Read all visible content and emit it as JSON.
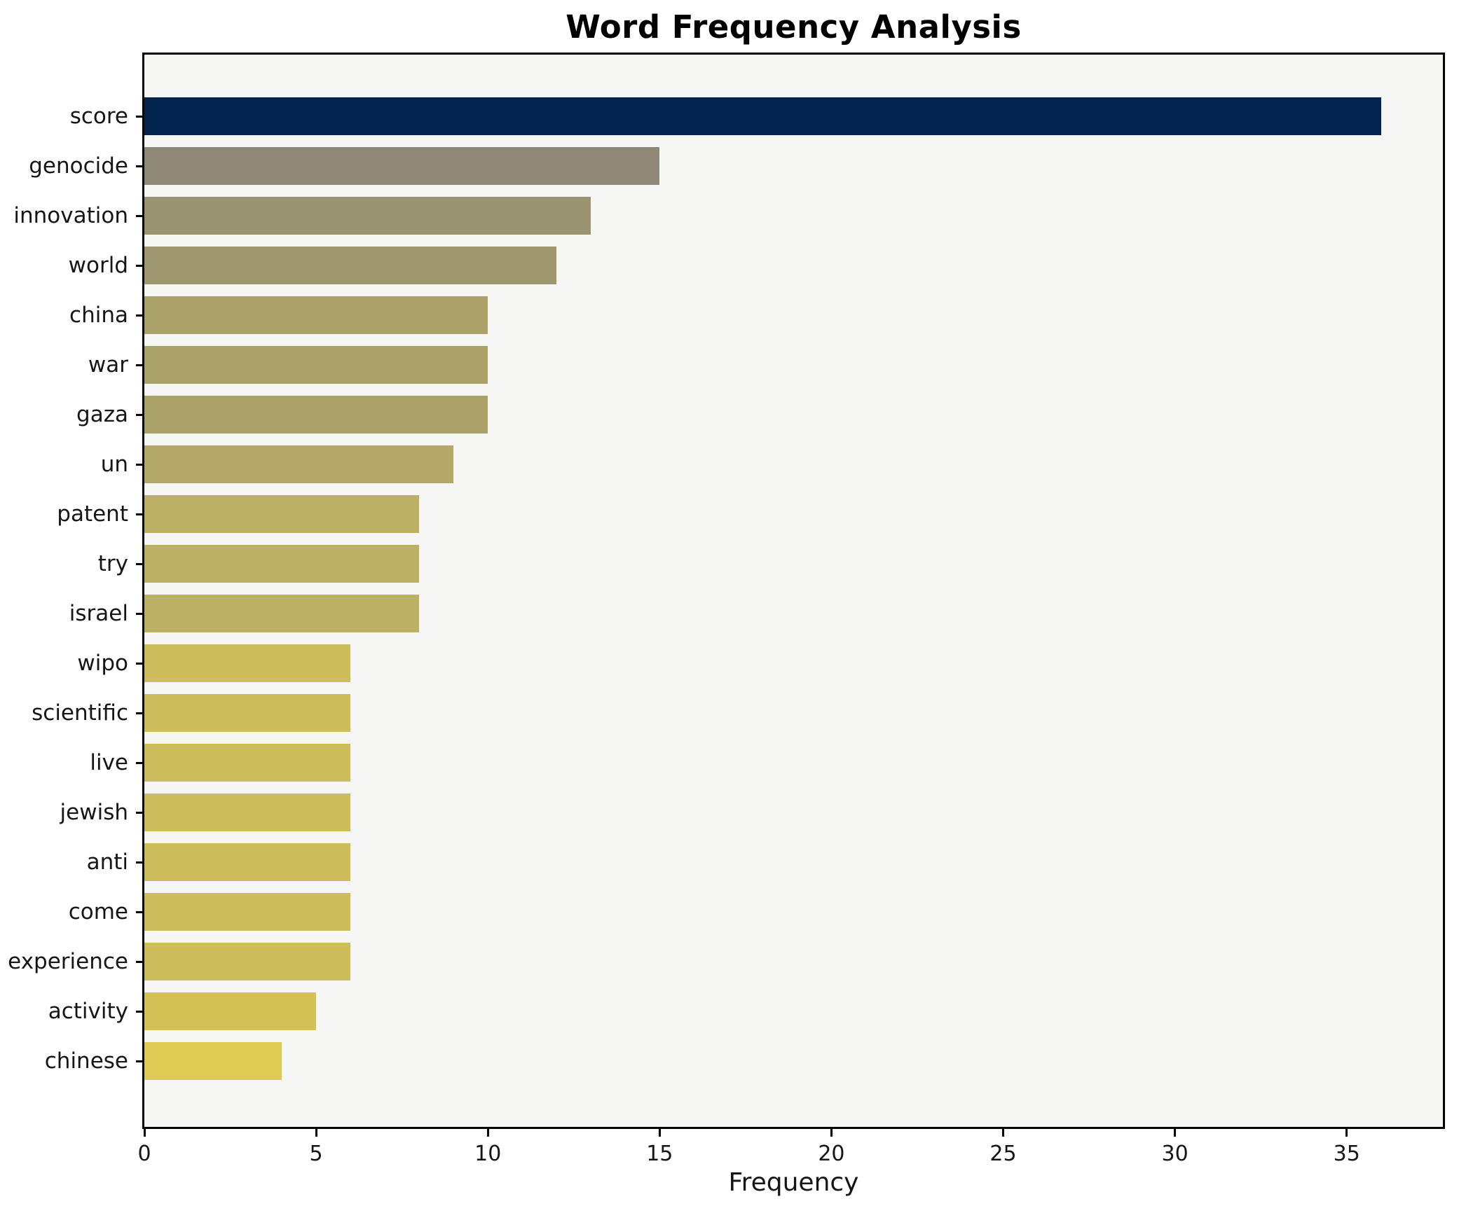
{
  "title": "Word Frequency Analysis",
  "chart_data": {
    "type": "bar",
    "orientation": "horizontal",
    "title": "Word Frequency Analysis",
    "xlabel": "Frequency",
    "ylabel": "",
    "categories": [
      "score",
      "genocide",
      "innovation",
      "world",
      "china",
      "war",
      "gaza",
      "un",
      "patent",
      "try",
      "israel",
      "wipo",
      "scientific",
      "live",
      "jewish",
      "anti",
      "come",
      "experience",
      "activity",
      "chinese"
    ],
    "values": [
      36,
      15,
      13,
      12,
      10,
      10,
      10,
      9,
      8,
      8,
      8,
      6,
      6,
      6,
      6,
      6,
      6,
      6,
      5,
      4
    ],
    "bar_colors": [
      "#02244E",
      "#8F8977",
      "#9A9371",
      "#9E9770",
      "#ABA26A",
      "#ABA26A",
      "#ABA26A",
      "#B3A867",
      "#BCB064",
      "#BCB064",
      "#BCB064",
      "#CDBD5C",
      "#CDBD5C",
      "#CDBD5C",
      "#CDBD5C",
      "#CDBD5C",
      "#CDBD5C",
      "#CDBD5C",
      "#D4C257",
      "#DFCB54"
    ],
    "xlim": [
      0,
      37.8
    ],
    "xticks": [
      0,
      5,
      10,
      15,
      20,
      25,
      30,
      35
    ],
    "grid": false,
    "legend_position": "none",
    "plot_background": "#F6F6F4",
    "figure_background": "#FFFFFF",
    "spine_color": "#000000",
    "bar_order": "descending-top-to-bottom"
  }
}
